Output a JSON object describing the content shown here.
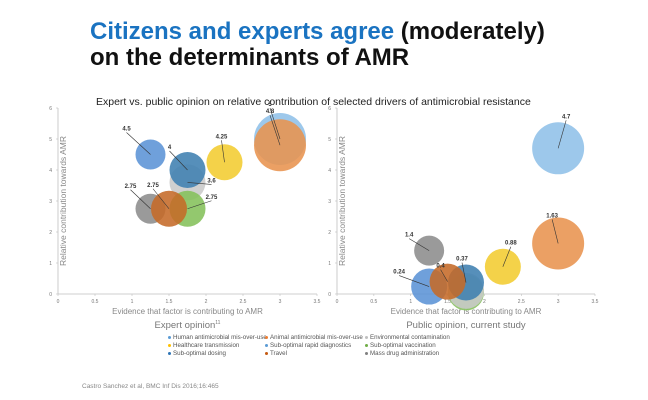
{
  "title": {
    "highlight": "Citizens and experts agree",
    "rest": " (moderately)",
    "line2": "on the determinants of AMR"
  },
  "subtitle": "Expert vs. public opinion on relative contribution of selected drivers of antimicrobial resistance",
  "citation": "Castro Sanchez et al, BMC Inf Dis 2016;16:465",
  "legend": [
    {
      "label": "Human antimicrobial mis-over-use",
      "color": "#5b9bd5"
    },
    {
      "label": "Animal antimicrobial mis-over-use",
      "color": "#ed7d31"
    },
    {
      "label": "Environmental contamination",
      "color": "#bfbfbf"
    },
    {
      "label": "Healthcare transmission",
      "color": "#ffc000"
    },
    {
      "label": "Sub-optimal rapid diagnostics",
      "color": "#5b9bd5"
    },
    {
      "label": "Sub-optimal vaccination",
      "color": "#70ad47"
    },
    {
      "label": "Sub-optimal dosing",
      "color": "#2e75b6"
    },
    {
      "label": "Travel",
      "color": "#c55a11"
    },
    {
      "label": "Mass drug administration",
      "color": "#808080"
    }
  ],
  "chart_data": [
    {
      "type": "scatter",
      "title": "Expert opinion",
      "title_superscript": "11",
      "xlabel": "Evidence that factor is contributing to AMR",
      "ylabel": "Relative contribution towards AMR",
      "xlim": [
        0,
        3.5
      ],
      "ylim": [
        0,
        6
      ],
      "xticks": [
        "0",
        "0.5",
        "1",
        "1.5",
        "2",
        "2.5",
        "3",
        "3.5"
      ],
      "yticks": [
        "0",
        "1",
        "2",
        "3",
        "4",
        "5",
        "6"
      ],
      "grid": false,
      "points": [
        {
          "name": "Sub-optimal rapid diagnostics",
          "x": 3.0,
          "y": 5.0,
          "label": "5",
          "color": "#8fc0e8"
        },
        {
          "name": "Animal antimicrobial mis-over-use",
          "x": 3.0,
          "y": 4.8,
          "label": "4.8",
          "color": "#e8934f"
        },
        {
          "name": "Human antimicrobial mis-over-use",
          "x": 1.25,
          "y": 4.5,
          "label": "4.5",
          "color": "#5b93d6"
        },
        {
          "name": "Healthcare transmission",
          "x": 2.25,
          "y": 4.25,
          "label": "4.25",
          "color": "#f2cc30"
        },
        {
          "name": "Environmental contamination",
          "x": 1.75,
          "y": 3.6,
          "label": "3.6",
          "color": "#c9c9c9"
        },
        {
          "name": "Sub-optimal dosing",
          "x": 1.75,
          "y": 4.0,
          "label": "4",
          "color": "#3f80b0"
        },
        {
          "name": "Mass drug administration",
          "x": 1.25,
          "y": 2.75,
          "label": "2.75",
          "color": "#8c8c8c"
        },
        {
          "name": "Sub-optimal vaccination",
          "x": 1.75,
          "y": 2.75,
          "label": "2.75",
          "color": "#84c05a"
        },
        {
          "name": "Travel",
          "x": 1.5,
          "y": 2.75,
          "label": "2.75",
          "color": "#c56a28"
        }
      ]
    },
    {
      "type": "scatter",
      "title": "Public opinion, current study",
      "xlabel": "Evidence that factor is contributing to AMR",
      "ylabel": "Relative contribution towards AMR",
      "xlim": [
        0,
        3.5
      ],
      "ylim": [
        0,
        6
      ],
      "xticks": [
        "0",
        "0.5",
        "1",
        "1.5",
        "2",
        "2.5",
        "3",
        "3.5"
      ],
      "yticks": [
        "0",
        "1",
        "2",
        "3",
        "4",
        "5",
        "6"
      ],
      "grid": false,
      "points": [
        {
          "name": "Sub-optimal rapid diagnostics",
          "x": 3.0,
          "y": 4.7,
          "label": "4.7",
          "color": "#8fc0e8"
        },
        {
          "name": "Animal antimicrobial mis-over-use",
          "x": 3.0,
          "y": 1.63,
          "label": "1.63",
          "color": "#e8934f"
        },
        {
          "name": "Mass drug administration",
          "x": 1.25,
          "y": 1.4,
          "label": "1.4",
          "color": "#8c8c8c"
        },
        {
          "name": "Healthcare transmission",
          "x": 2.25,
          "y": 0.88,
          "label": "0.88",
          "color": "#f2cc30"
        },
        {
          "name": "Sub-optimal vaccination",
          "x": 1.75,
          "y": 0.05,
          "label": "",
          "color": "#84c05a"
        },
        {
          "name": "Environmental contamination",
          "x": 1.75,
          "y": 0.1,
          "label": "",
          "color": "#c9c9c9"
        },
        {
          "name": "Human antimicrobial mis-over-use",
          "x": 1.25,
          "y": 0.24,
          "label": "0.24",
          "color": "#5b93d6"
        },
        {
          "name": "Sub-optimal dosing",
          "x": 1.75,
          "y": 0.37,
          "label": "0.37",
          "color": "#3f80b0"
        },
        {
          "name": "Travel",
          "x": 1.5,
          "y": 0.4,
          "label": "0.4",
          "color": "#c56a28"
        }
      ]
    }
  ]
}
